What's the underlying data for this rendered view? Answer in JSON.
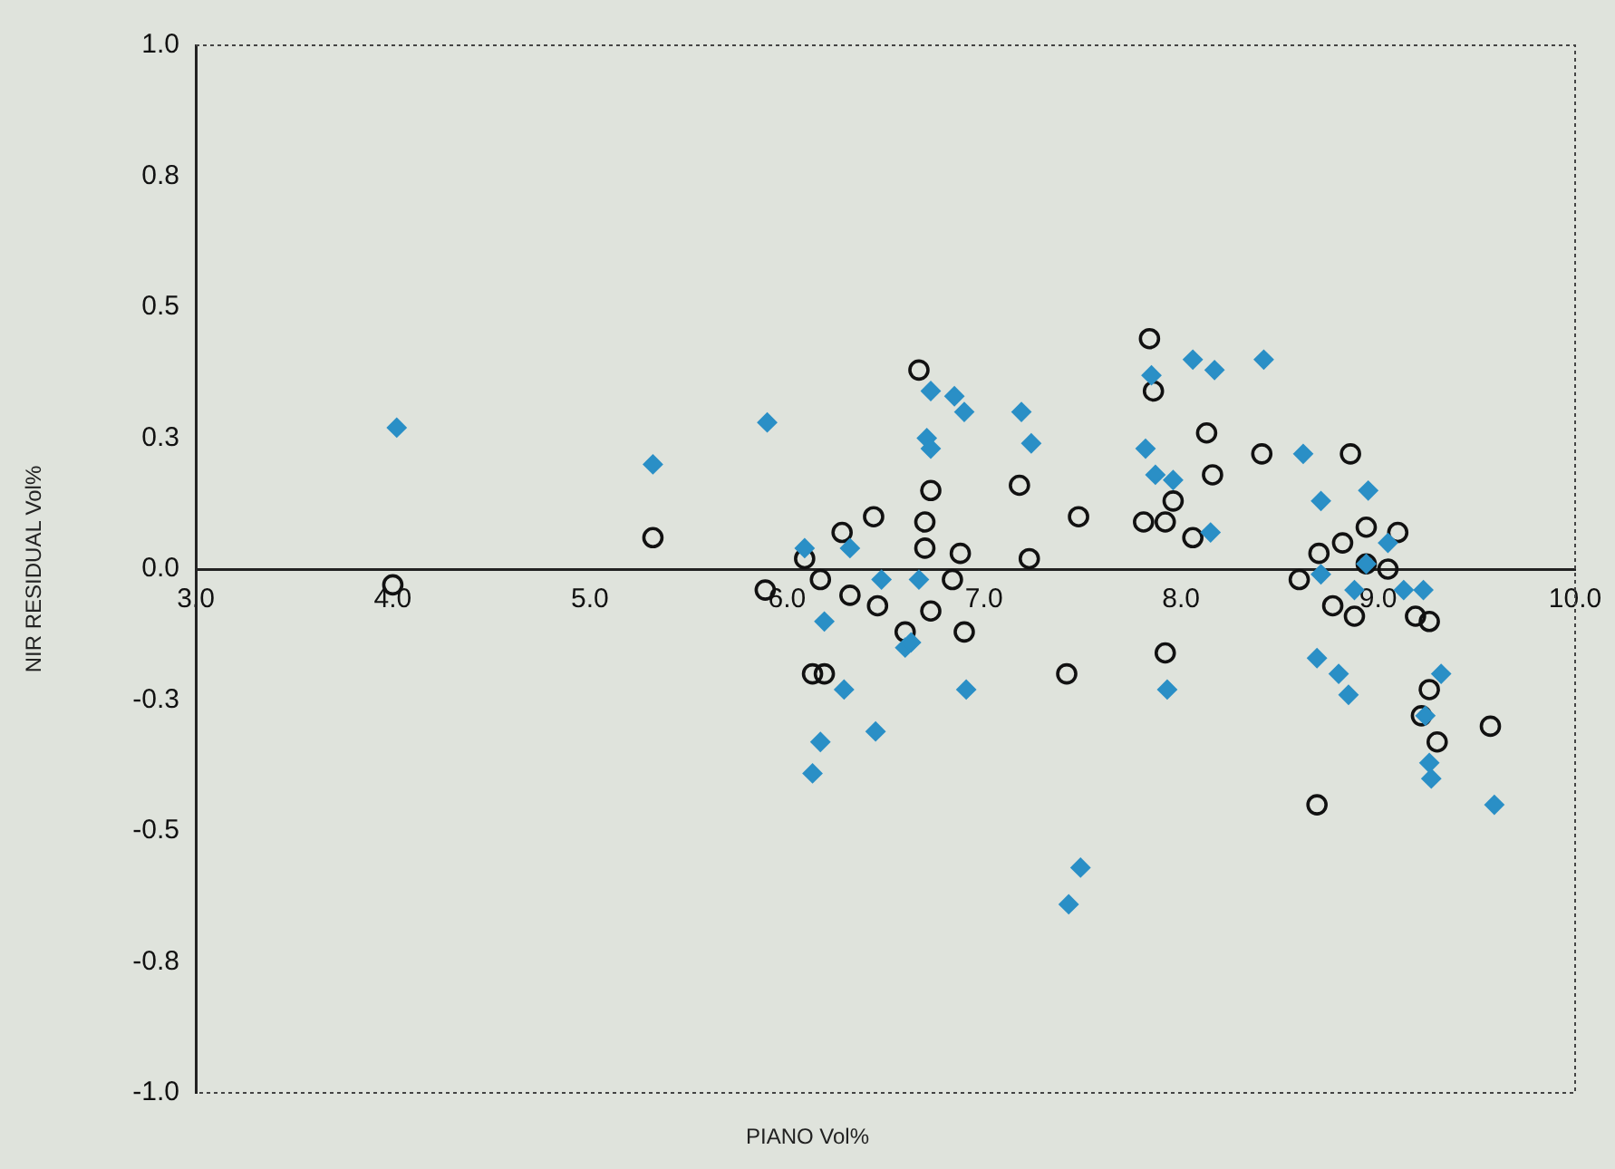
{
  "chart_data": {
    "type": "scatter",
    "xlabel": "PIANO Vol%",
    "ylabel": "NIR RESIDUAL Vol%",
    "xlim": [
      3,
      10
    ],
    "ylim": [
      -1,
      1
    ],
    "xticks": [
      {
        "value": 3,
        "label": "3.0"
      },
      {
        "value": 4,
        "label": "4.0"
      },
      {
        "value": 5,
        "label": "5.0"
      },
      {
        "value": 6,
        "label": "6.0"
      },
      {
        "value": 7,
        "label": "7.0"
      },
      {
        "value": 8,
        "label": "8.0"
      },
      {
        "value": 9,
        "label": "9.0"
      },
      {
        "value": 10,
        "label": "10.0"
      }
    ],
    "yticks": [
      {
        "value": -1,
        "label": "-1.0"
      },
      {
        "value": -0.75,
        "label": "-0.8"
      },
      {
        "value": -0.5,
        "label": "-0.5"
      },
      {
        "value": -0.25,
        "label": "-0.3"
      },
      {
        "value": 0,
        "label": "0.0"
      },
      {
        "value": 0.25,
        "label": "0.3"
      },
      {
        "value": 0.5,
        "label": "0.5"
      },
      {
        "value": 0.75,
        "label": "0.8"
      },
      {
        "value": 1,
        "label": "1.0"
      }
    ],
    "grid": false,
    "legend": false,
    "series": [
      {
        "color": "#2a8fc6",
        "marker": "diamond",
        "x": [
          4.02,
          5.32,
          5.9,
          6.09,
          6.32,
          6.48,
          6.19,
          6.29,
          6.17,
          6.45,
          6.13,
          6.6,
          6.73,
          6.71,
          6.73,
          6.85,
          6.9,
          6.67,
          6.63,
          6.91,
          7.19,
          7.24,
          7.82,
          7.85,
          7.87,
          7.96,
          8.15,
          8.06,
          8.17,
          8.42,
          7.93,
          7.49,
          7.43,
          8.62,
          8.71,
          8.95,
          9.05,
          8.94,
          8.71,
          8.88,
          9.13,
          9.23,
          8.69,
          8.8,
          8.85,
          9.32,
          9.24,
          9.26,
          9.27,
          9.59
        ],
        "values": [
          0.27,
          0.2,
          0.28,
          0.04,
          0.04,
          -0.02,
          -0.1,
          -0.23,
          -0.33,
          -0.31,
          -0.39,
          -0.15,
          0.34,
          0.25,
          0.23,
          0.33,
          0.3,
          -0.02,
          -0.14,
          -0.23,
          0.3,
          0.24,
          0.23,
          0.37,
          0.18,
          0.17,
          0.07,
          0.4,
          0.38,
          0.4,
          -0.23,
          -0.57,
          -0.64,
          0.22,
          0.13,
          0.15,
          0.05,
          0.01,
          -0.01,
          -0.04,
          -0.04,
          -0.04,
          -0.17,
          -0.2,
          -0.24,
          -0.2,
          -0.28,
          -0.37,
          -0.4,
          -0.45
        ]
      },
      {
        "color": "#111111",
        "marker": "circle",
        "x": [
          4.0,
          5.32,
          5.89,
          6.09,
          6.17,
          6.28,
          6.44,
          6.32,
          6.46,
          6.13,
          6.19,
          6.6,
          6.67,
          6.73,
          6.7,
          6.7,
          6.88,
          6.84,
          6.73,
          6.9,
          7.18,
          7.23,
          7.48,
          7.42,
          7.84,
          7.86,
          7.81,
          7.92,
          7.96,
          8.06,
          8.13,
          8.16,
          8.41,
          7.92,
          8.86,
          8.7,
          8.82,
          8.94,
          9.1,
          9.05,
          8.94,
          8.6,
          8.77,
          8.88,
          9.19,
          9.26,
          9.26,
          9.22,
          9.3,
          9.57,
          8.69
        ],
        "values": [
          -0.03,
          0.06,
          -0.04,
          0.02,
          -0.02,
          0.07,
          0.1,
          -0.05,
          -0.07,
          -0.2,
          -0.2,
          -0.12,
          0.38,
          0.15,
          0.09,
          0.04,
          0.03,
          -0.02,
          -0.08,
          -0.12,
          0.16,
          0.02,
          0.1,
          -0.2,
          0.44,
          0.34,
          0.09,
          0.09,
          0.13,
          0.06,
          0.26,
          0.18,
          0.22,
          -0.16,
          0.22,
          0.03,
          0.05,
          0.08,
          0.07,
          0,
          0.01,
          -0.02,
          -0.07,
          -0.09,
          -0.09,
          -0.1,
          -0.23,
          -0.28,
          -0.33,
          -0.3,
          -0.45
        ]
      }
    ]
  }
}
